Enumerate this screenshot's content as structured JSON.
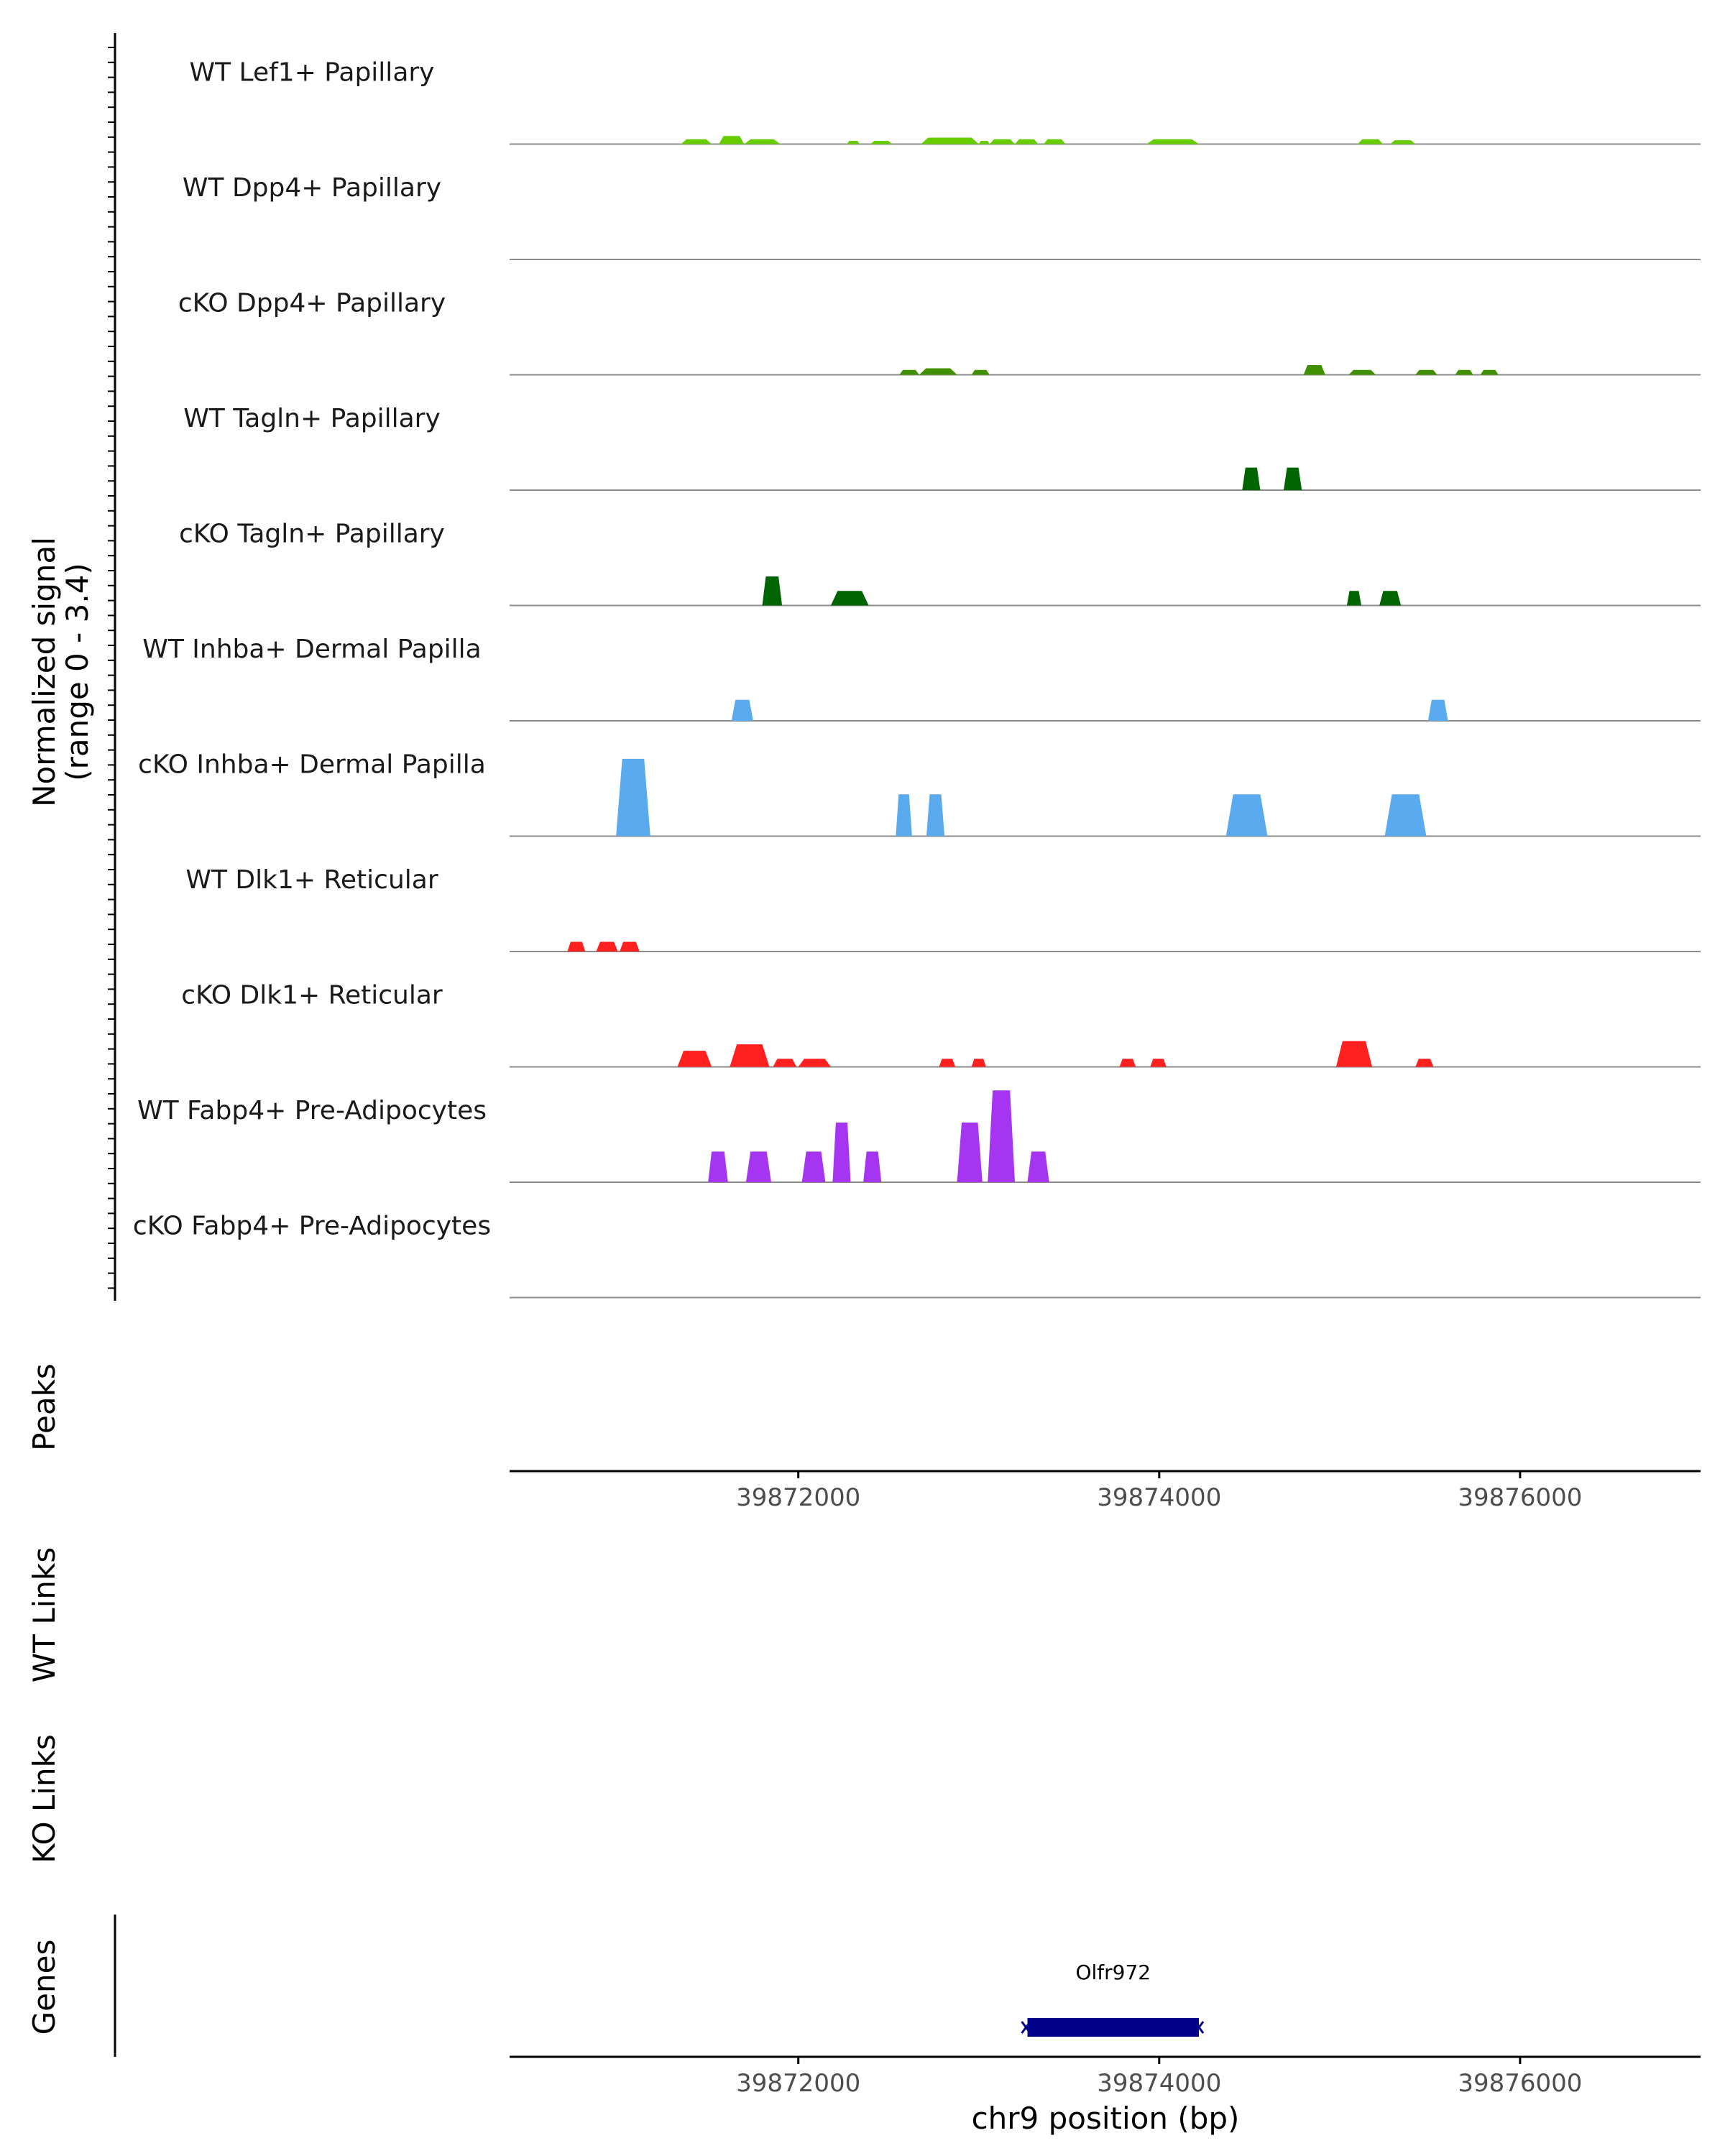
{
  "chart_data": {
    "type": "coverage",
    "region": {
      "chrom": "chr9",
      "start": 39870400,
      "end": 39877000
    },
    "y_axis_label": "Normalized signal",
    "y_axis_range_label": "(range 0 - 3.4)",
    "ylim": [
      0,
      3.4
    ],
    "colors": {
      "lime": "#66cc00",
      "olive": "#3f8f00",
      "dark_green": "#006400",
      "sky": "#5aaaf0",
      "red": "#ff2020",
      "purple": "#a535f0",
      "gene": "#00008b",
      "axis": "#000000",
      "baseline": "#8c8c8c"
    },
    "tracks": [
      {
        "label": "WT Lef1+ Papillary",
        "color": "#66cc00",
        "blocks": [
          [
            39871350,
            39871520,
            0.15
          ],
          [
            39871560,
            39871700,
            0.25
          ],
          [
            39871700,
            39871900,
            0.15
          ],
          [
            39872270,
            39872340,
            0.1
          ],
          [
            39872400,
            39872520,
            0.1
          ],
          [
            39872680,
            39873000,
            0.2
          ],
          [
            39873000,
            39873060,
            0.1
          ],
          [
            39873060,
            39873200,
            0.15
          ],
          [
            39873200,
            39873330,
            0.15
          ],
          [
            39873360,
            39873480,
            0.15
          ],
          [
            39873930,
            39874220,
            0.15
          ],
          [
            39875100,
            39875240,
            0.15
          ],
          [
            39875280,
            39875420,
            0.12
          ]
        ]
      },
      {
        "label": "WT Dpp4+ Papillary",
        "color": "#3f8f00",
        "blocks": []
      },
      {
        "label": "cKO Dpp4+ Papillary",
        "color": "#3f8f00",
        "blocks": [
          [
            39872560,
            39872670,
            0.15
          ],
          [
            39872670,
            39872880,
            0.2
          ],
          [
            39872960,
            39873060,
            0.15
          ],
          [
            39874800,
            39874920,
            0.3
          ],
          [
            39875050,
            39875200,
            0.15
          ],
          [
            39875420,
            39875540,
            0.15
          ],
          [
            39875640,
            39875740,
            0.15
          ],
          [
            39875780,
            39875880,
            0.15
          ]
        ]
      },
      {
        "label": "WT Tagln+ Papillary",
        "color": "#006400",
        "blocks": [
          [
            39874460,
            39874560,
            0.7
          ],
          [
            39874690,
            39874790,
            0.7
          ]
        ]
      },
      {
        "label": "cKO Tagln+ Papillary",
        "color": "#006400",
        "blocks": [
          [
            39871800,
            39871910,
            0.9
          ],
          [
            39872180,
            39872390,
            0.45
          ],
          [
            39875040,
            39875120,
            0.45
          ],
          [
            39875220,
            39875340,
            0.45
          ]
        ]
      },
      {
        "label": "WT Inhba+ Dermal Papilla",
        "color": "#5aaaf0",
        "blocks": [
          [
            39871630,
            39871750,
            0.65
          ],
          [
            39875490,
            39875600,
            0.65
          ]
        ]
      },
      {
        "label": "cKO Inhba+ Dermal Papilla",
        "color": "#5aaaf0",
        "blocks": [
          [
            39870990,
            39871180,
            2.4
          ],
          [
            39872540,
            39872630,
            1.3
          ],
          [
            39872710,
            39872810,
            1.3
          ],
          [
            39874370,
            39874600,
            1.3
          ],
          [
            39875250,
            39875480,
            1.3
          ]
        ]
      },
      {
        "label": "WT Dlk1+ Reticular",
        "color": "#ff2020",
        "blocks": [
          [
            39870720,
            39870820,
            0.3
          ],
          [
            39870880,
            39871000,
            0.3
          ],
          [
            39871010,
            39871120,
            0.3
          ]
        ]
      },
      {
        "label": "cKO Dlk1+ Reticular",
        "color": "#ff2020",
        "blocks": [
          [
            39871330,
            39871520,
            0.5
          ],
          [
            39871620,
            39871840,
            0.7
          ],
          [
            39871860,
            39871990,
            0.25
          ],
          [
            39872000,
            39872180,
            0.25
          ],
          [
            39872780,
            39872870,
            0.25
          ],
          [
            39872960,
            39873040,
            0.25
          ],
          [
            39873780,
            39873870,
            0.25
          ],
          [
            39873950,
            39874040,
            0.25
          ],
          [
            39874980,
            39875180,
            0.8
          ],
          [
            39875420,
            39875520,
            0.25
          ]
        ]
      },
      {
        "label": "WT Fabp4+ Pre-Adipocytes",
        "color": "#a535f0",
        "blocks": [
          [
            39871500,
            39871610,
            0.95
          ],
          [
            39871710,
            39871850,
            0.95
          ],
          [
            39872020,
            39872150,
            0.95
          ],
          [
            39872190,
            39872290,
            1.85
          ],
          [
            39872360,
            39872460,
            0.95
          ],
          [
            39872880,
            39873020,
            1.85
          ],
          [
            39873050,
            39873200,
            2.85
          ],
          [
            39873270,
            39873390,
            0.95
          ]
        ]
      },
      {
        "label": "cKO Fabp4+ Pre-Adipocytes",
        "color": "#a535f0",
        "blocks": []
      }
    ],
    "peaks_label": "Peaks",
    "x_ticks": [
      39872000,
      39874000,
      39876000
    ],
    "tick_labels": [
      "39872000",
      "39874000",
      "39876000"
    ],
    "links_wt_label": "WT Links",
    "links_ko_label": "KO Links",
    "genes_label": "Genes",
    "genes": [
      {
        "name": "Olfr972",
        "start": 39873270,
        "end": 39874220,
        "strand": "-"
      }
    ],
    "xlabel": "chr9 position (bp)"
  }
}
